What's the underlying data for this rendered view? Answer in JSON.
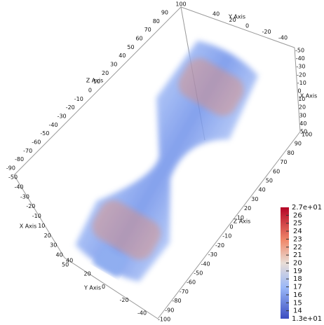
{
  "corner_label": "100",
  "top_y_axis": {
    "title": "Y Axis",
    "ticks": [
      "40",
      "20",
      "0",
      "-20",
      "-40"
    ]
  },
  "left_z_axis": {
    "title": "Z Axis",
    "ticks": [
      "90",
      "80",
      "70",
      "60",
      "50",
      "40",
      "30",
      "20",
      "10",
      "0",
      "-10",
      "-20",
      "-30",
      "-40",
      "-50",
      "-60",
      "-70",
      "-80",
      "-90"
    ]
  },
  "right_x_axis": {
    "title": "X Axis",
    "ticks": [
      "-50",
      "-40",
      "-30",
      "-20",
      "-10",
      "0",
      "10",
      "20",
      "30",
      "40",
      "50"
    ]
  },
  "right_z_axis": {
    "title": "Z Axis",
    "ticks": [
      "100",
      "90",
      "80",
      "70",
      "60",
      "50",
      "40",
      "30",
      "20",
      "10",
      "0",
      "-10",
      "-20",
      "-30",
      "-40",
      "-50",
      "-60",
      "-70",
      "-80",
      "-90",
      "-100"
    ]
  },
  "left_x_axis": {
    "title": "X Axis",
    "ticks": [
      "-50",
      "-40",
      "-30",
      "-20",
      "-10",
      "10",
      "20",
      "30",
      "40",
      "50"
    ]
  },
  "bottom_y_axis": {
    "title": "Y Axis",
    "ticks": [
      "40",
      "20",
      "0",
      "-20",
      "-40"
    ]
  },
  "colorbar": {
    "max_label": "2.7e+01",
    "ticks": [
      "26",
      "25",
      "24",
      "23",
      "22",
      "21",
      "20",
      "19",
      "18",
      "17",
      "16",
      "15",
      "14"
    ],
    "min_label": "1.3e+01"
  }
}
